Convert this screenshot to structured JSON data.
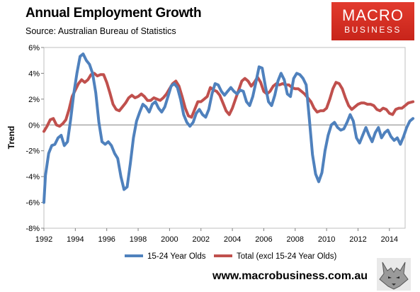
{
  "header": {
    "title": "Annual Employment Growth",
    "subtitle": "Source: Australian Bureau of Statistics"
  },
  "logo": {
    "line1": "MACRO",
    "line2": "BUSINESS",
    "color": "#d42d22"
  },
  "footer": {
    "url": "www.macrobusiness.com.au"
  },
  "chart_data": {
    "type": "line",
    "title": "Annual Employment Growth",
    "ylabel": "Trend",
    "xlim": [
      1992,
      2015
    ],
    "ylim": [
      -8,
      6
    ],
    "x_ticks": [
      1992,
      1994,
      1996,
      1998,
      2000,
      2002,
      2004,
      2006,
      2008,
      2010,
      2012,
      2014
    ],
    "x_tick_labels": [
      "1992",
      "1994",
      "1996",
      "1998",
      "2000",
      "2002",
      "2004",
      "2006",
      "2008",
      "2010",
      "2012",
      "2014"
    ],
    "y_ticks": [
      -8,
      -6,
      -4,
      -2,
      0,
      2,
      4,
      6
    ],
    "y_tick_labels": [
      "-8%",
      "-6%",
      "-4%",
      "-2%",
      "0%",
      "2%",
      "4%",
      "6%"
    ],
    "grid": false,
    "legend_position": "bottom",
    "series": [
      {
        "name": "15-24 Year Olds",
        "color": "#4f81bd",
        "points": [
          [
            1992.0,
            -6.0
          ],
          [
            1992.1,
            -3.9
          ],
          [
            1992.3,
            -2.2
          ],
          [
            1992.5,
            -1.6
          ],
          [
            1992.7,
            -1.5
          ],
          [
            1992.9,
            -1.0
          ],
          [
            1993.1,
            -0.8
          ],
          [
            1993.3,
            -1.6
          ],
          [
            1993.5,
            -1.3
          ],
          [
            1993.7,
            0.4
          ],
          [
            1993.9,
            2.4
          ],
          [
            1994.1,
            4.0
          ],
          [
            1994.3,
            5.3
          ],
          [
            1994.5,
            5.5
          ],
          [
            1994.7,
            5.0
          ],
          [
            1994.9,
            4.7
          ],
          [
            1995.1,
            4.0
          ],
          [
            1995.3,
            2.5
          ],
          [
            1995.5,
            0.2
          ],
          [
            1995.7,
            -1.3
          ],
          [
            1995.9,
            -1.5
          ],
          [
            1996.1,
            -1.3
          ],
          [
            1996.3,
            -1.6
          ],
          [
            1996.5,
            -2.2
          ],
          [
            1996.7,
            -2.6
          ],
          [
            1996.9,
            -4.0
          ],
          [
            1997.1,
            -5.0
          ],
          [
            1997.3,
            -4.8
          ],
          [
            1997.5,
            -3.0
          ],
          [
            1997.7,
            -1.0
          ],
          [
            1997.9,
            0.3
          ],
          [
            1998.1,
            1.0
          ],
          [
            1998.3,
            1.6
          ],
          [
            1998.5,
            1.4
          ],
          [
            1998.7,
            1.0
          ],
          [
            1998.9,
            1.6
          ],
          [
            1999.1,
            1.8
          ],
          [
            1999.3,
            1.3
          ],
          [
            1999.5,
            1.0
          ],
          [
            1999.7,
            1.4
          ],
          [
            1999.9,
            2.2
          ],
          [
            2000.1,
            3.0
          ],
          [
            2000.3,
            3.2
          ],
          [
            2000.5,
            2.9
          ],
          [
            2000.7,
            2.0
          ],
          [
            2000.9,
            0.8
          ],
          [
            2001.1,
            0.2
          ],
          [
            2001.3,
            -0.1
          ],
          [
            2001.5,
            0.2
          ],
          [
            2001.7,
            0.9
          ],
          [
            2001.9,
            1.2
          ],
          [
            2002.1,
            0.8
          ],
          [
            2002.3,
            0.6
          ],
          [
            2002.5,
            1.2
          ],
          [
            2002.7,
            2.4
          ],
          [
            2002.9,
            3.2
          ],
          [
            2003.1,
            3.1
          ],
          [
            2003.3,
            2.6
          ],
          [
            2003.5,
            2.3
          ],
          [
            2003.7,
            2.6
          ],
          [
            2003.9,
            2.9
          ],
          [
            2004.1,
            2.6
          ],
          [
            2004.3,
            2.4
          ],
          [
            2004.5,
            2.7
          ],
          [
            2004.7,
            2.6
          ],
          [
            2004.9,
            1.8
          ],
          [
            2005.1,
            1.5
          ],
          [
            2005.3,
            2.2
          ],
          [
            2005.5,
            3.3
          ],
          [
            2005.7,
            4.5
          ],
          [
            2005.9,
            4.4
          ],
          [
            2006.1,
            3.0
          ],
          [
            2006.3,
            1.8
          ],
          [
            2006.5,
            1.5
          ],
          [
            2006.7,
            2.3
          ],
          [
            2006.9,
            3.4
          ],
          [
            2007.1,
            4.0
          ],
          [
            2007.3,
            3.5
          ],
          [
            2007.5,
            2.4
          ],
          [
            2007.7,
            2.2
          ],
          [
            2007.9,
            3.6
          ],
          [
            2008.1,
            4.0
          ],
          [
            2008.3,
            3.9
          ],
          [
            2008.5,
            3.6
          ],
          [
            2008.7,
            3.1
          ],
          [
            2008.9,
            0.5
          ],
          [
            2009.1,
            -2.3
          ],
          [
            2009.3,
            -3.8
          ],
          [
            2009.5,
            -4.4
          ],
          [
            2009.7,
            -3.7
          ],
          [
            2009.9,
            -2.0
          ],
          [
            2010.1,
            -0.8
          ],
          [
            2010.3,
            0.0
          ],
          [
            2010.5,
            0.2
          ],
          [
            2010.7,
            -0.2
          ],
          [
            2010.9,
            -0.4
          ],
          [
            2011.1,
            -0.3
          ],
          [
            2011.3,
            0.2
          ],
          [
            2011.5,
            0.8
          ],
          [
            2011.7,
            0.3
          ],
          [
            2011.9,
            -1.0
          ],
          [
            2012.1,
            -1.4
          ],
          [
            2012.3,
            -0.8
          ],
          [
            2012.5,
            -0.2
          ],
          [
            2012.7,
            -0.8
          ],
          [
            2012.9,
            -1.3
          ],
          [
            2013.1,
            -0.6
          ],
          [
            2013.3,
            -0.2
          ],
          [
            2013.5,
            -1.0
          ],
          [
            2013.7,
            -0.6
          ],
          [
            2013.9,
            -0.4
          ],
          [
            2014.1,
            -0.9
          ],
          [
            2014.3,
            -1.2
          ],
          [
            2014.5,
            -1.0
          ],
          [
            2014.7,
            -1.5
          ],
          [
            2014.9,
            -0.9
          ],
          [
            2015.1,
            -0.2
          ],
          [
            2015.3,
            0.3
          ],
          [
            2015.5,
            0.5
          ]
        ]
      },
      {
        "name": "Total (excl 15-24 Year Olds)",
        "color": "#c0504d",
        "points": [
          [
            1992.0,
            -0.5
          ],
          [
            1992.2,
            -0.1
          ],
          [
            1992.4,
            0.4
          ],
          [
            1992.6,
            0.5
          ],
          [
            1992.8,
            0.0
          ],
          [
            1993.0,
            -0.1
          ],
          [
            1993.2,
            0.1
          ],
          [
            1993.4,
            0.4
          ],
          [
            1993.6,
            1.2
          ],
          [
            1993.8,
            2.2
          ],
          [
            1994.0,
            2.7
          ],
          [
            1994.2,
            3.2
          ],
          [
            1994.4,
            3.5
          ],
          [
            1994.6,
            3.3
          ],
          [
            1994.8,
            3.5
          ],
          [
            1995.0,
            3.9
          ],
          [
            1995.2,
            4.0
          ],
          [
            1995.4,
            3.8
          ],
          [
            1995.6,
            3.9
          ],
          [
            1995.8,
            3.9
          ],
          [
            1996.0,
            3.3
          ],
          [
            1996.2,
            2.5
          ],
          [
            1996.4,
            1.6
          ],
          [
            1996.6,
            1.2
          ],
          [
            1996.8,
            1.1
          ],
          [
            1997.0,
            1.4
          ],
          [
            1997.2,
            1.7
          ],
          [
            1997.4,
            2.1
          ],
          [
            1997.6,
            2.3
          ],
          [
            1997.8,
            2.1
          ],
          [
            1998.0,
            2.2
          ],
          [
            1998.2,
            2.4
          ],
          [
            1998.4,
            2.2
          ],
          [
            1998.6,
            1.9
          ],
          [
            1998.8,
            1.9
          ],
          [
            1999.0,
            2.1
          ],
          [
            1999.2,
            2.0
          ],
          [
            1999.4,
            1.9
          ],
          [
            1999.6,
            2.1
          ],
          [
            1999.8,
            2.4
          ],
          [
            2000.0,
            2.8
          ],
          [
            2000.2,
            3.2
          ],
          [
            2000.4,
            3.4
          ],
          [
            2000.6,
            3.0
          ],
          [
            2000.8,
            2.2
          ],
          [
            2001.0,
            1.3
          ],
          [
            2001.2,
            0.7
          ],
          [
            2001.4,
            0.6
          ],
          [
            2001.6,
            1.2
          ],
          [
            2001.8,
            1.8
          ],
          [
            2002.0,
            1.8
          ],
          [
            2002.2,
            2.0
          ],
          [
            2002.4,
            2.2
          ],
          [
            2002.6,
            2.9
          ],
          [
            2002.8,
            2.7
          ],
          [
            2003.0,
            2.6
          ],
          [
            2003.2,
            2.3
          ],
          [
            2003.4,
            1.7
          ],
          [
            2003.6,
            1.1
          ],
          [
            2003.8,
            0.8
          ],
          [
            2004.0,
            1.3
          ],
          [
            2004.2,
            2.0
          ],
          [
            2004.4,
            2.7
          ],
          [
            2004.6,
            3.4
          ],
          [
            2004.8,
            3.6
          ],
          [
            2005.0,
            3.4
          ],
          [
            2005.2,
            3.0
          ],
          [
            2005.4,
            3.3
          ],
          [
            2005.6,
            3.7
          ],
          [
            2005.8,
            3.3
          ],
          [
            2006.0,
            2.6
          ],
          [
            2006.2,
            2.4
          ],
          [
            2006.4,
            2.6
          ],
          [
            2006.6,
            3.0
          ],
          [
            2006.8,
            3.2
          ],
          [
            2007.0,
            3.1
          ],
          [
            2007.2,
            3.2
          ],
          [
            2007.4,
            3.1
          ],
          [
            2007.6,
            3.1
          ],
          [
            2007.8,
            2.9
          ],
          [
            2008.0,
            2.8
          ],
          [
            2008.2,
            2.8
          ],
          [
            2008.4,
            2.6
          ],
          [
            2008.6,
            2.4
          ],
          [
            2008.8,
            2.1
          ],
          [
            2009.0,
            1.8
          ],
          [
            2009.2,
            1.3
          ],
          [
            2009.4,
            1.0
          ],
          [
            2009.6,
            1.1
          ],
          [
            2009.8,
            1.1
          ],
          [
            2010.0,
            1.3
          ],
          [
            2010.2,
            2.0
          ],
          [
            2010.4,
            2.8
          ],
          [
            2010.6,
            3.3
          ],
          [
            2010.8,
            3.2
          ],
          [
            2011.0,
            2.8
          ],
          [
            2011.2,
            2.1
          ],
          [
            2011.4,
            1.5
          ],
          [
            2011.6,
            1.2
          ],
          [
            2011.8,
            1.4
          ],
          [
            2012.0,
            1.6
          ],
          [
            2012.2,
            1.7
          ],
          [
            2012.4,
            1.7
          ],
          [
            2012.6,
            1.6
          ],
          [
            2012.8,
            1.6
          ],
          [
            2013.0,
            1.5
          ],
          [
            2013.2,
            1.2
          ],
          [
            2013.4,
            1.1
          ],
          [
            2013.6,
            1.3
          ],
          [
            2013.8,
            1.2
          ],
          [
            2014.0,
            0.9
          ],
          [
            2014.2,
            0.8
          ],
          [
            2014.4,
            1.2
          ],
          [
            2014.6,
            1.3
          ],
          [
            2014.8,
            1.3
          ],
          [
            2015.0,
            1.5
          ],
          [
            2015.2,
            1.7
          ],
          [
            2015.5,
            1.8
          ]
        ]
      }
    ]
  }
}
